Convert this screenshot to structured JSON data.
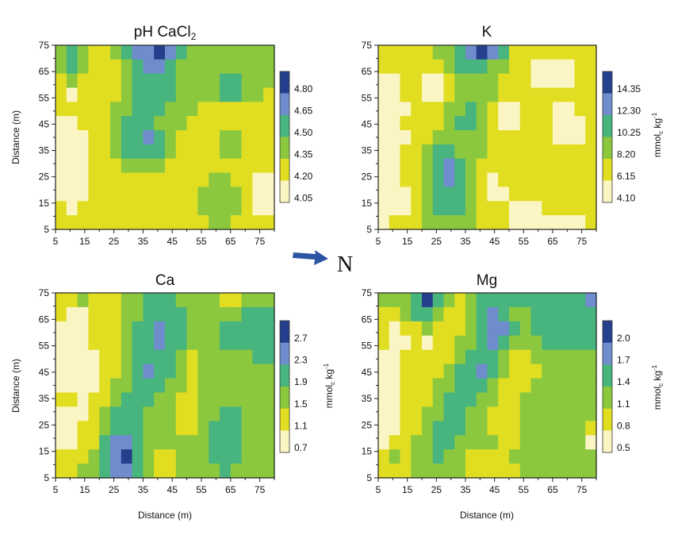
{
  "colors": {
    "c0": "#fbf5c4",
    "c1": "#e1de22",
    "c2": "#8cc83e",
    "c3": "#48b47e",
    "c4": "#6f8ccd",
    "c5": "#243f8c",
    "arrow": "#2c55a4",
    "frame": "#222222"
  },
  "north_label": "N",
  "chart_data": [
    {
      "type": "heatmap",
      "id": "ph",
      "title": "pH CaCl",
      "title_sub": "2",
      "xlabel": "",
      "ylabel": "Distance (m)",
      "xticks": [
        "5",
        "15",
        "25",
        "35",
        "45",
        "55",
        "65",
        "75"
      ],
      "yticks": [
        "75",
        "65",
        "55",
        "45",
        "35",
        "25",
        "15",
        "5"
      ],
      "xlim": [
        5,
        80
      ],
      "ylim": [
        5,
        75
      ],
      "legend_unit": "",
      "legend_unit_sub": "",
      "legend_unit_sup": "",
      "legend_levels": [
        "4.80",
        "4.65",
        "4.50",
        "4.35",
        "4.20",
        "4.05"
      ],
      "grid": [
        [
          2,
          3,
          2,
          1,
          1,
          2,
          3,
          4,
          4,
          5,
          4,
          3,
          2,
          2,
          2,
          2,
          2,
          2,
          2,
          2
        ],
        [
          2,
          3,
          2,
          1,
          1,
          1,
          2,
          3,
          4,
          4,
          3,
          2,
          2,
          2,
          2,
          2,
          2,
          2,
          2,
          2
        ],
        [
          1,
          2,
          1,
          1,
          1,
          1,
          2,
          3,
          3,
          3,
          3,
          2,
          2,
          2,
          2,
          3,
          3,
          2,
          2,
          2
        ],
        [
          1,
          0,
          1,
          1,
          1,
          1,
          2,
          3,
          3,
          3,
          3,
          2,
          2,
          2,
          2,
          3,
          3,
          2,
          2,
          1
        ],
        [
          1,
          1,
          1,
          1,
          1,
          2,
          2,
          3,
          3,
          3,
          2,
          2,
          2,
          1,
          1,
          1,
          1,
          1,
          1,
          1
        ],
        [
          0,
          0,
          1,
          1,
          1,
          2,
          3,
          3,
          3,
          2,
          2,
          2,
          1,
          1,
          1,
          1,
          1,
          1,
          1,
          1
        ],
        [
          0,
          0,
          0,
          1,
          1,
          2,
          3,
          3,
          4,
          3,
          2,
          1,
          1,
          1,
          1,
          2,
          2,
          1,
          1,
          1
        ],
        [
          0,
          0,
          0,
          1,
          1,
          2,
          3,
          3,
          3,
          3,
          2,
          1,
          1,
          1,
          1,
          2,
          2,
          1,
          1,
          1
        ],
        [
          0,
          0,
          0,
          1,
          1,
          1,
          2,
          2,
          2,
          2,
          1,
          1,
          1,
          1,
          1,
          1,
          1,
          1,
          1,
          1
        ],
        [
          0,
          0,
          0,
          1,
          1,
          1,
          1,
          1,
          1,
          1,
          1,
          1,
          1,
          1,
          2,
          2,
          1,
          1,
          0,
          0
        ],
        [
          0,
          0,
          0,
          1,
          1,
          1,
          1,
          1,
          1,
          1,
          1,
          1,
          1,
          2,
          2,
          2,
          2,
          1,
          0,
          0
        ],
        [
          1,
          0,
          1,
          1,
          1,
          1,
          1,
          1,
          1,
          1,
          1,
          1,
          1,
          2,
          2,
          2,
          2,
          1,
          0,
          0
        ],
        [
          1,
          1,
          1,
          1,
          1,
          1,
          1,
          1,
          1,
          1,
          1,
          1,
          1,
          1,
          2,
          2,
          1,
          1,
          1,
          1
        ]
      ]
    },
    {
      "type": "heatmap",
      "id": "k",
      "title": "K",
      "title_sub": "",
      "xlabel": "",
      "ylabel": "",
      "xticks": [
        "5",
        "15",
        "25",
        "35",
        "45",
        "55",
        "65",
        "75"
      ],
      "yticks": [
        "75",
        "65",
        "55",
        "45",
        "35",
        "25",
        "15",
        "5"
      ],
      "xlim": [
        5,
        80
      ],
      "ylim": [
        5,
        75
      ],
      "legend_unit": "mmol",
      "legend_unit_sub": "c",
      "legend_unit_sup": "-1",
      "legend_unit_kg": " kg",
      "legend_levels": [
        "14.35",
        "12.30",
        "10.25",
        "8.20",
        "6.15",
        "4.10"
      ],
      "grid": [
        [
          1,
          1,
          1,
          1,
          1,
          2,
          2,
          3,
          4,
          5,
          4,
          3,
          1,
          1,
          1,
          1,
          1,
          1,
          1,
          1
        ],
        [
          1,
          1,
          1,
          1,
          1,
          1,
          2,
          3,
          3,
          3,
          2,
          2,
          1,
          1,
          0,
          0,
          0,
          0,
          1,
          1
        ],
        [
          0,
          0,
          1,
          1,
          0,
          0,
          1,
          2,
          2,
          2,
          2,
          1,
          1,
          1,
          0,
          0,
          0,
          0,
          1,
          1
        ],
        [
          0,
          0,
          1,
          1,
          0,
          0,
          1,
          2,
          2,
          2,
          2,
          1,
          1,
          1,
          1,
          1,
          1,
          1,
          1,
          1
        ],
        [
          0,
          0,
          0,
          1,
          1,
          1,
          2,
          2,
          3,
          2,
          1,
          0,
          0,
          1,
          1,
          1,
          0,
          0,
          1,
          1
        ],
        [
          0,
          0,
          1,
          1,
          1,
          1,
          2,
          3,
          3,
          2,
          1,
          0,
          0,
          1,
          1,
          1,
          0,
          0,
          0,
          1
        ],
        [
          0,
          0,
          0,
          1,
          1,
          2,
          2,
          2,
          2,
          2,
          1,
          1,
          1,
          1,
          1,
          1,
          0,
          0,
          0,
          1
        ],
        [
          0,
          0,
          1,
          1,
          2,
          3,
          3,
          2,
          2,
          2,
          1,
          1,
          1,
          1,
          1,
          1,
          1,
          1,
          1,
          1
        ],
        [
          0,
          0,
          1,
          1,
          2,
          3,
          4,
          3,
          2,
          1,
          1,
          1,
          1,
          1,
          1,
          1,
          1,
          1,
          1,
          1
        ],
        [
          0,
          0,
          1,
          1,
          2,
          3,
          4,
          3,
          2,
          1,
          0,
          1,
          1,
          1,
          1,
          1,
          1,
          1,
          1,
          1
        ],
        [
          0,
          0,
          0,
          1,
          2,
          3,
          3,
          3,
          2,
          1,
          0,
          0,
          1,
          1,
          1,
          1,
          1,
          1,
          1,
          1
        ],
        [
          0,
          0,
          0,
          1,
          2,
          3,
          3,
          3,
          2,
          1,
          1,
          1,
          0,
          0,
          0,
          1,
          1,
          1,
          1,
          1
        ],
        [
          0,
          1,
          1,
          1,
          2,
          2,
          2,
          2,
          2,
          1,
          1,
          1,
          0,
          0,
          0,
          0,
          0,
          0,
          0,
          1
        ]
      ]
    },
    {
      "type": "heatmap",
      "id": "ca",
      "title": "Ca",
      "title_sub": "",
      "xlabel": "Distance (m)",
      "ylabel": "Distance (m)",
      "xticks": [
        "5",
        "15",
        "25",
        "35",
        "45",
        "55",
        "65",
        "75"
      ],
      "yticks": [
        "75",
        "65",
        "55",
        "45",
        "35",
        "25",
        "15",
        "5"
      ],
      "xlim": [
        5,
        80
      ],
      "ylim": [
        5,
        75
      ],
      "legend_unit": "mmol",
      "legend_unit_sub": "c",
      "legend_unit_sup": "-1",
      "legend_unit_kg": " kg",
      "legend_levels": [
        "2.7",
        "2.3",
        "1.9",
        "1.5",
        "1.1",
        "0.7"
      ],
      "grid": [
        [
          1,
          1,
          2,
          1,
          1,
          1,
          2,
          2,
          3,
          3,
          3,
          2,
          2,
          2,
          2,
          1,
          1,
          2,
          2,
          2
        ],
        [
          1,
          0,
          0,
          1,
          1,
          1,
          2,
          2,
          3,
          3,
          3,
          3,
          2,
          2,
          2,
          2,
          2,
          3,
          3,
          3
        ],
        [
          0,
          0,
          0,
          1,
          1,
          1,
          2,
          3,
          3,
          4,
          3,
          3,
          2,
          2,
          2,
          3,
          3,
          3,
          3,
          3
        ],
        [
          0,
          0,
          0,
          1,
          1,
          1,
          2,
          3,
          3,
          4,
          3,
          3,
          2,
          2,
          2,
          3,
          3,
          3,
          3,
          3
        ],
        [
          0,
          0,
          0,
          0,
          1,
          1,
          2,
          3,
          3,
          3,
          3,
          2,
          1,
          2,
          2,
          2,
          2,
          2,
          3,
          3
        ],
        [
          0,
          0,
          0,
          0,
          1,
          1,
          2,
          3,
          4,
          3,
          3,
          2,
          1,
          2,
          2,
          2,
          2,
          2,
          2,
          2
        ],
        [
          0,
          0,
          0,
          0,
          1,
          2,
          2,
          3,
          3,
          3,
          2,
          2,
          1,
          2,
          2,
          2,
          2,
          2,
          2,
          2
        ],
        [
          1,
          1,
          0,
          1,
          1,
          2,
          3,
          3,
          3,
          2,
          2,
          1,
          1,
          2,
          2,
          2,
          2,
          2,
          2,
          2
        ],
        [
          0,
          0,
          0,
          1,
          2,
          3,
          3,
          3,
          2,
          2,
          2,
          1,
          1,
          2,
          2,
          3,
          3,
          2,
          2,
          2
        ],
        [
          0,
          0,
          1,
          1,
          2,
          3,
          3,
          3,
          2,
          2,
          2,
          1,
          1,
          2,
          3,
          3,
          3,
          2,
          2,
          2
        ],
        [
          0,
          0,
          1,
          1,
          3,
          4,
          4,
          3,
          2,
          2,
          2,
          2,
          2,
          2,
          3,
          3,
          3,
          2,
          2,
          2
        ],
        [
          1,
          1,
          1,
          2,
          3,
          4,
          5,
          3,
          2,
          1,
          1,
          2,
          2,
          2,
          3,
          3,
          3,
          2,
          2,
          2
        ],
        [
          1,
          1,
          2,
          2,
          3,
          4,
          4,
          3,
          2,
          1,
          1,
          2,
          2,
          2,
          2,
          3,
          2,
          2,
          2,
          2
        ]
      ]
    },
    {
      "type": "heatmap",
      "id": "mg",
      "title": "Mg",
      "title_sub": "",
      "xlabel": "Distance (m)",
      "ylabel": "",
      "xticks": [
        "5",
        "15",
        "25",
        "35",
        "45",
        "55",
        "65",
        "75"
      ],
      "yticks": [
        "75",
        "65",
        "55",
        "45",
        "35",
        "25",
        "15",
        "5"
      ],
      "xlim": [
        5,
        80
      ],
      "ylim": [
        5,
        75
      ],
      "legend_unit": "mmol",
      "legend_unit_sub": "c",
      "legend_unit_sup": "-1",
      "legend_unit_kg": " kg",
      "legend_levels": [
        "2.0",
        "1.7",
        "1.4",
        "1.1",
        "0.8",
        "0.5"
      ],
      "grid": [
        [
          2,
          2,
          2,
          3,
          5,
          3,
          2,
          1,
          2,
          3,
          3,
          3,
          3,
          3,
          3,
          3,
          3,
          3,
          3,
          4
        ],
        [
          1,
          1,
          2,
          3,
          3,
          2,
          1,
          1,
          2,
          3,
          4,
          3,
          2,
          2,
          3,
          3,
          3,
          3,
          3,
          3
        ],
        [
          1,
          0,
          1,
          1,
          2,
          1,
          1,
          1,
          2,
          3,
          4,
          4,
          3,
          2,
          3,
          3,
          3,
          3,
          3,
          3
        ],
        [
          1,
          0,
          0,
          1,
          0,
          1,
          1,
          2,
          2,
          3,
          4,
          3,
          2,
          2,
          2,
          3,
          3,
          3,
          3,
          3
        ],
        [
          0,
          0,
          1,
          1,
          1,
          1,
          1,
          2,
          3,
          3,
          3,
          2,
          1,
          1,
          2,
          2,
          2,
          2,
          2,
          2
        ],
        [
          0,
          0,
          1,
          1,
          1,
          1,
          2,
          3,
          3,
          4,
          3,
          2,
          1,
          1,
          1,
          2,
          2,
          2,
          2,
          2
        ],
        [
          0,
          0,
          1,
          1,
          1,
          2,
          2,
          3,
          3,
          3,
          2,
          1,
          1,
          1,
          2,
          2,
          2,
          2,
          2,
          2
        ],
        [
          0,
          0,
          1,
          1,
          1,
          2,
          3,
          3,
          3,
          2,
          2,
          1,
          1,
          2,
          2,
          2,
          2,
          2,
          2,
          2
        ],
        [
          0,
          0,
          1,
          1,
          2,
          2,
          3,
          3,
          2,
          2,
          1,
          1,
          1,
          2,
          2,
          2,
          2,
          2,
          2,
          2
        ],
        [
          0,
          0,
          1,
          1,
          2,
          3,
          3,
          3,
          2,
          2,
          1,
          1,
          1,
          2,
          2,
          2,
          2,
          2,
          2,
          1
        ],
        [
          0,
          1,
          1,
          2,
          2,
          3,
          3,
          2,
          2,
          2,
          2,
          1,
          1,
          2,
          2,
          2,
          2,
          2,
          2,
          0
        ],
        [
          1,
          2,
          1,
          2,
          2,
          3,
          2,
          2,
          1,
          1,
          1,
          1,
          2,
          2,
          2,
          2,
          2,
          2,
          2,
          2
        ],
        [
          1,
          1,
          1,
          2,
          2,
          2,
          2,
          2,
          1,
          1,
          1,
          1,
          1,
          2,
          2,
          2,
          2,
          2,
          2,
          2
        ]
      ]
    }
  ]
}
